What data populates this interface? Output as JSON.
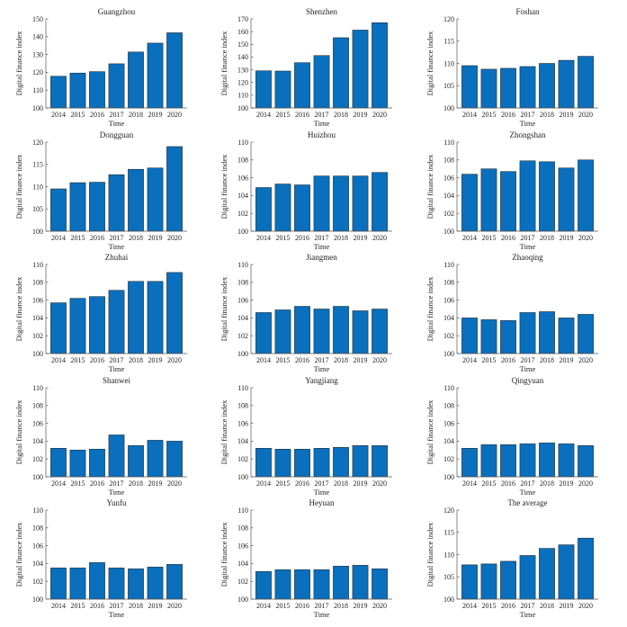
{
  "colors": {
    "bar": "#0a6fbd"
  },
  "chart_data": [
    {
      "type": "bar",
      "title": "Guangzhou",
      "xlabel": "Time",
      "ylabel": "Digital finance index",
      "categories": [
        "2014",
        "2015",
        "2016",
        "2017",
        "2018",
        "2019",
        "2020"
      ],
      "values": [
        117.8,
        119.6,
        120.4,
        124.8,
        131.4,
        136.4,
        142.2
      ],
      "ylim": [
        100,
        150
      ],
      "yticks": [
        "100",
        "110",
        "120",
        "130",
        "140",
        "150"
      ]
    },
    {
      "type": "bar",
      "title": "Shenzhen",
      "xlabel": "Time",
      "ylabel": "Digital finance index",
      "categories": [
        "2014",
        "2015",
        "2016",
        "2017",
        "2018",
        "2019",
        "2020"
      ],
      "values": [
        129.2,
        129.0,
        135.6,
        141.2,
        155.2,
        161.2,
        167.0
      ],
      "ylim": [
        100,
        170
      ],
      "yticks": [
        "100",
        "110",
        "120",
        "130",
        "140",
        "150",
        "160",
        "170"
      ]
    },
    {
      "type": "bar",
      "title": "Foshan",
      "xlabel": "Time",
      "ylabel": "Digital finance index",
      "categories": [
        "2014",
        "2015",
        "2016",
        "2017",
        "2018",
        "2019",
        "2020"
      ],
      "values": [
        109.5,
        108.7,
        108.9,
        109.3,
        110.0,
        110.7,
        111.6
      ],
      "ylim": [
        100,
        120
      ],
      "yticks": [
        "100",
        "105",
        "110",
        "115",
        "120"
      ]
    },
    {
      "type": "bar",
      "title": "Dongguan",
      "xlabel": "Time",
      "ylabel": "Digital finance index",
      "categories": [
        "2014",
        "2015",
        "2016",
        "2017",
        "2018",
        "2019",
        "2020"
      ],
      "values": [
        109.5,
        110.9,
        111.0,
        112.7,
        113.9,
        114.2,
        119.0
      ],
      "ylim": [
        100,
        120
      ],
      "yticks": [
        "100",
        "105",
        "110",
        "115",
        "120"
      ]
    },
    {
      "type": "bar",
      "title": "Huizhou",
      "xlabel": "Time",
      "ylabel": "Digital finance index",
      "categories": [
        "2014",
        "2015",
        "2016",
        "2017",
        "2018",
        "2019",
        "2020"
      ],
      "values": [
        104.9,
        105.3,
        105.2,
        106.2,
        106.2,
        106.2,
        106.6
      ],
      "ylim": [
        100,
        110
      ],
      "yticks": [
        "100",
        "102",
        "104",
        "106",
        "108",
        "110"
      ]
    },
    {
      "type": "bar",
      "title": "Zhongshan",
      "xlabel": "Time",
      "ylabel": "Digital finance index",
      "categories": [
        "2014",
        "2015",
        "2016",
        "2017",
        "2018",
        "2019",
        "2020"
      ],
      "values": [
        106.4,
        107.0,
        106.7,
        107.9,
        107.8,
        107.1,
        108.0
      ],
      "ylim": [
        100,
        110
      ],
      "yticks": [
        "100",
        "102",
        "104",
        "106",
        "108",
        "110"
      ]
    },
    {
      "type": "bar",
      "title": "Zhuhai",
      "xlabel": "Time",
      "ylabel": "Digital finance index",
      "categories": [
        "2014",
        "2015",
        "2016",
        "2017",
        "2018",
        "2019",
        "2020"
      ],
      "values": [
        105.7,
        106.2,
        106.4,
        107.1,
        108.1,
        108.1,
        109.1
      ],
      "ylim": [
        100,
        110
      ],
      "yticks": [
        "100",
        "102",
        "104",
        "106",
        "108",
        "110"
      ]
    },
    {
      "type": "bar",
      "title": "Jiangmen",
      "xlabel": "Time",
      "ylabel": "Digital finance index",
      "categories": [
        "2014",
        "2015",
        "2016",
        "2017",
        "2018",
        "2019",
        "2020"
      ],
      "values": [
        104.6,
        104.9,
        105.3,
        105.0,
        105.3,
        104.8,
        105.0
      ],
      "ylim": [
        100,
        110
      ],
      "yticks": [
        "100",
        "102",
        "104",
        "106",
        "108",
        "110"
      ]
    },
    {
      "type": "bar",
      "title": "Zhaoqing",
      "xlabel": "Time",
      "ylabel": "Digital finance index",
      "categories": [
        "2014",
        "2015",
        "2016",
        "2017",
        "2018",
        "2019",
        "2020"
      ],
      "values": [
        104.0,
        103.8,
        103.7,
        104.6,
        104.7,
        104.0,
        104.4
      ],
      "ylim": [
        100,
        110
      ],
      "yticks": [
        "100",
        "102",
        "104",
        "106",
        "108",
        "110"
      ]
    },
    {
      "type": "bar",
      "title": "Shanwei",
      "xlabel": "Time",
      "ylabel": "Digital finance index",
      "categories": [
        "2014",
        "2015",
        "2016",
        "2017",
        "2018",
        "2019",
        "2020"
      ],
      "values": [
        103.2,
        103.0,
        103.1,
        104.7,
        103.5,
        104.1,
        104.0
      ],
      "ylim": [
        100,
        110
      ],
      "yticks": [
        "100",
        "102",
        "104",
        "106",
        "108",
        "110"
      ]
    },
    {
      "type": "bar",
      "title": "Yangjiang",
      "xlabel": "Time",
      "ylabel": "Digital finance index",
      "categories": [
        "2014",
        "2015",
        "2016",
        "2017",
        "2018",
        "2019",
        "2020"
      ],
      "values": [
        103.2,
        103.1,
        103.1,
        103.2,
        103.3,
        103.5,
        103.5
      ],
      "ylim": [
        100,
        110
      ],
      "yticks": [
        "100",
        "102",
        "104",
        "106",
        "108",
        "110"
      ]
    },
    {
      "type": "bar",
      "title": "Qingyuan",
      "xlabel": "Time",
      "ylabel": "Digital finance index",
      "categories": [
        "2014",
        "2015",
        "2016",
        "2017",
        "2018",
        "2019",
        "2020"
      ],
      "values": [
        103.2,
        103.6,
        103.6,
        103.7,
        103.8,
        103.7,
        103.5
      ],
      "ylim": [
        100,
        110
      ],
      "yticks": [
        "100",
        "102",
        "104",
        "106",
        "108",
        "110"
      ]
    },
    {
      "type": "bar",
      "title": "Yunfu",
      "xlabel": "Time",
      "ylabel": "Digital finance index",
      "categories": [
        "2014",
        "2015",
        "2016",
        "2017",
        "2018",
        "2019",
        "2020"
      ],
      "values": [
        103.5,
        103.5,
        104.1,
        103.5,
        103.4,
        103.6,
        103.9
      ],
      "ylim": [
        100,
        110
      ],
      "yticks": [
        "100",
        "102",
        "104",
        "106",
        "108",
        "110"
      ]
    },
    {
      "type": "bar",
      "title": "Heyuan",
      "xlabel": "Time",
      "ylabel": "Digital finance index",
      "categories": [
        "2014",
        "2015",
        "2016",
        "2017",
        "2018",
        "2019",
        "2020"
      ],
      "values": [
        103.1,
        103.3,
        103.3,
        103.3,
        103.7,
        103.8,
        103.4
      ],
      "ylim": [
        100,
        110
      ],
      "yticks": [
        "100",
        "102",
        "104",
        "106",
        "108",
        "110"
      ]
    },
    {
      "type": "bar",
      "title": "The average",
      "xlabel": "Time",
      "ylabel": "Digital finance index",
      "categories": [
        "2014",
        "2015",
        "2016",
        "2017",
        "2018",
        "2019",
        "2020"
      ],
      "values": [
        107.7,
        107.9,
        108.5,
        109.8,
        111.4,
        112.2,
        113.7
      ],
      "ylim": [
        100,
        120
      ],
      "yticks": [
        "100",
        "105",
        "110",
        "115",
        "120"
      ]
    }
  ]
}
